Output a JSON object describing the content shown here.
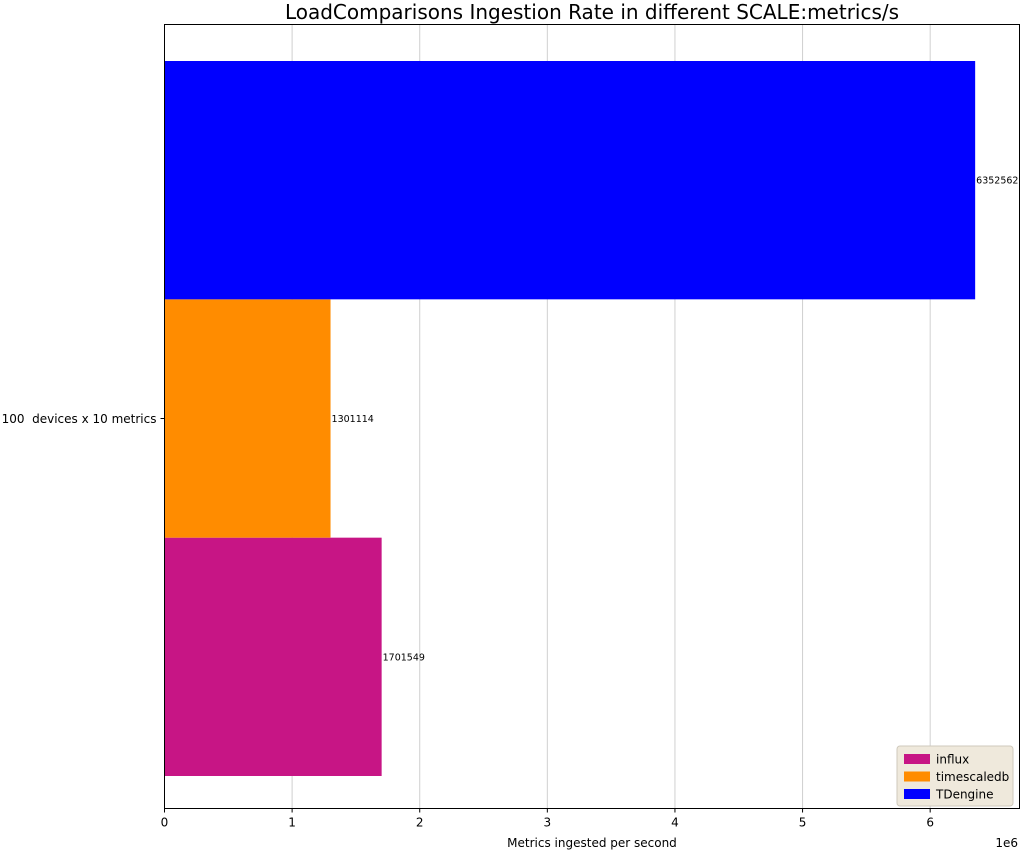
{
  "chart_data": {
    "type": "bar",
    "orientation": "horizontal",
    "title": "LoadComparisons Ingestion Rate in different SCALE:metrics/s",
    "xlabel": "Metrics ingested per second",
    "ylabel": "",
    "x_scale_label": "1e6",
    "x_tick_values": [
      0,
      1000000,
      2000000,
      3000000,
      4000000,
      5000000,
      6000000
    ],
    "x_tick_labels": [
      "0",
      "1",
      "2",
      "3",
      "4",
      "5",
      "6"
    ],
    "xlim": [
      0,
      6700000
    ],
    "categories": [
      "100  devices x 10 metrics"
    ],
    "series": [
      {
        "name": "influx",
        "color": "#c71585",
        "values": [
          1701549
        ],
        "value_labels": [
          "1701549"
        ]
      },
      {
        "name": "timescaledb",
        "color": "#ff8c00",
        "values": [
          1301114
        ],
        "value_labels": [
          "1301114"
        ]
      },
      {
        "name": "TDengine",
        "color": "#0000ff",
        "values": [
          6352562
        ],
        "value_labels": [
          "6352562"
        ]
      }
    ],
    "grid": "vertical",
    "legend_position": "lower-right"
  }
}
